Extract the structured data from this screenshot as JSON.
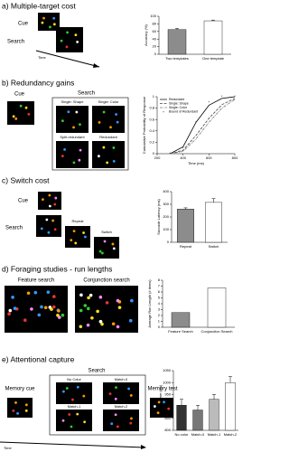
{
  "panels": [
    {
      "title": "a) Multiple-target cost",
      "labels": [
        "Cue",
        "Search",
        "Time"
      ]
    },
    {
      "title": "b) Redundancy gains",
      "labels": [
        "Cue",
        "Search",
        "Single: Shape",
        "Single: Color",
        "Split-redundant",
        "Redundant"
      ]
    },
    {
      "title": "c) Switch cost",
      "labels": [
        "Cue",
        "Search",
        "Repeat",
        "Switch"
      ]
    },
    {
      "title": "d) Foraging studies - run lengths",
      "labels": [
        "Feature search",
        "Conjunction search"
      ]
    },
    {
      "title": "e) Attentional capture",
      "labels": [
        "Memory cue",
        "Search",
        "No Color",
        "Match-0",
        "Match-1",
        "Match-2",
        "Memory test",
        "Time"
      ]
    }
  ],
  "chart_data": [
    {
      "type": "bar",
      "ylabel": "Accuracy (%)",
      "categories": [
        "Two templates",
        "One template"
      ],
      "values": [
        65,
        88
      ],
      "errors": [
        3,
        2
      ],
      "colors": [
        "#8c8c8c",
        "#ffffff"
      ],
      "ylim": [
        0,
        100
      ],
      "yticks": [
        0,
        20,
        40,
        60,
        80,
        100
      ]
    },
    {
      "type": "line",
      "xlabel": "Time (ms)",
      "ylabel": "Cumulative Probability of Response",
      "legend": "upper left",
      "x": [
        300,
        400,
        500,
        600,
        700,
        800
      ],
      "xlim": [
        200,
        800
      ],
      "xticks": [
        200,
        400,
        600,
        800
      ],
      "ylim": [
        0,
        1
      ],
      "yticks": [
        0,
        0.2,
        0.4,
        0.6,
        0.8,
        1
      ],
      "series": [
        {
          "name": "Redundant",
          "color": "#000000",
          "style": "solid",
          "values": [
            0,
            0.12,
            0.55,
            0.85,
            0.97,
            1
          ]
        },
        {
          "name": "Single: Shape",
          "color": "#444444",
          "style": "dashed",
          "values": [
            0,
            0.06,
            0.32,
            0.62,
            0.86,
            0.97
          ]
        },
        {
          "name": "Single: Color",
          "color": "#777777",
          "style": "dashdot",
          "values": [
            0,
            0.04,
            0.26,
            0.55,
            0.8,
            0.95
          ]
        },
        {
          "name": "Bound of Redundant",
          "color": "#000000",
          "style": "markers",
          "values": [
            0,
            0.1,
            0.55,
            0.9,
            1,
            1
          ]
        }
      ]
    },
    {
      "type": "bar",
      "ylabel": "Saccade Latency (ms)",
      "categories": [
        "Repeat",
        "Switch"
      ],
      "values": [
        262,
        315
      ],
      "errors": [
        10,
        30
      ],
      "colors": [
        "#8c8c8c",
        "#ffffff"
      ],
      "ylim": [
        0,
        400
      ],
      "yticks": [
        0,
        100,
        200,
        300,
        400
      ]
    },
    {
      "type": "bar",
      "ylabel": "Average Run Length (# items)",
      "categories": [
        "Feature Search",
        "Conjunction Search"
      ],
      "values": [
        2.5,
        6.7
      ],
      "colors": [
        "#8c8c8c",
        "#ffffff"
      ],
      "ylim": [
        0,
        8
      ],
      "yticks": [
        0,
        1,
        2,
        3,
        4,
        5,
        6,
        7,
        8
      ]
    },
    {
      "type": "bar",
      "ylabel": "Reaction Time (ms)",
      "categories": [
        "No color",
        "Match-0",
        "Match-1",
        "Match-2"
      ],
      "values": [
        905,
        885,
        930,
        1000
      ],
      "errors": [
        25,
        20,
        20,
        25
      ],
      "colors": [
        "#333333",
        "#777777",
        "#bbbbbb",
        "#ffffff"
      ],
      "ylim": [
        800,
        1050
      ],
      "yticks": [
        800,
        850,
        900,
        950,
        1000,
        1050
      ]
    }
  ]
}
